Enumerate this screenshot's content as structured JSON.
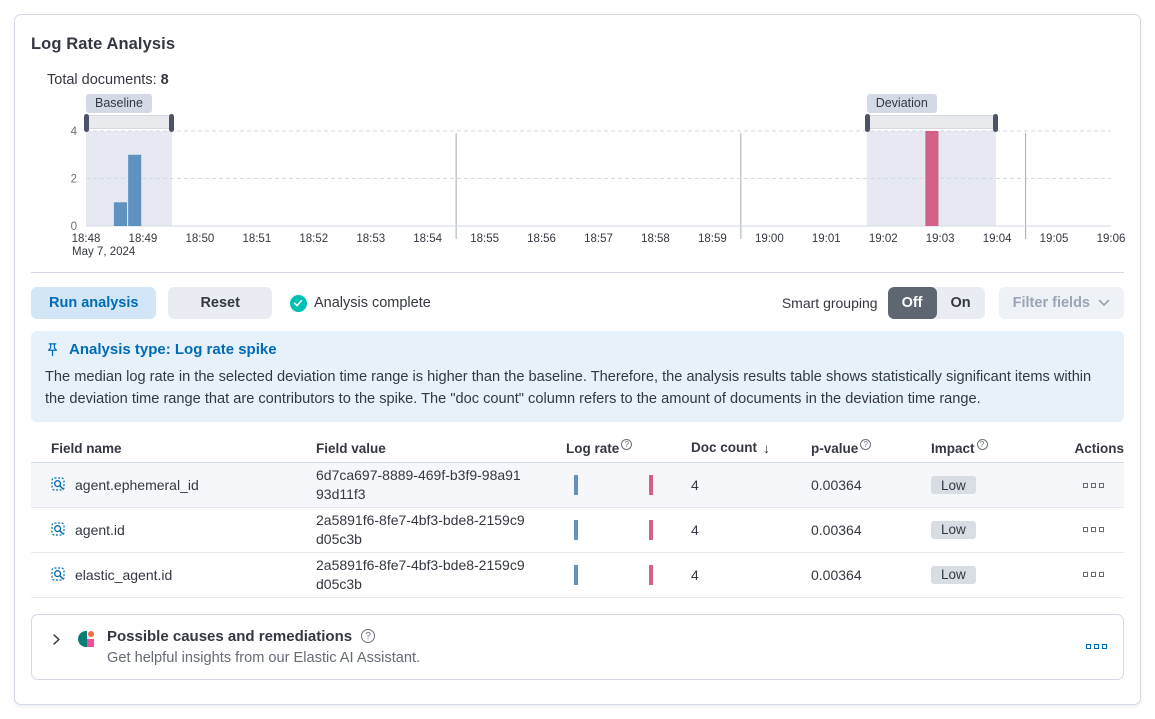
{
  "page": {
    "title": "Log Rate Analysis"
  },
  "summary": {
    "total_documents_label": "Total documents:",
    "total_documents_value": "8"
  },
  "chart_data": {
    "type": "bar",
    "title": "Document count histogram with baseline and deviation brushes",
    "x_axis": {
      "tick_labels": [
        "18:48",
        "18:49",
        "18:50",
        "18:51",
        "18:52",
        "18:53",
        "18:54",
        "18:55",
        "18:56",
        "18:57",
        "18:58",
        "18:59",
        "19:00",
        "19:01",
        "19:02",
        "19:03",
        "19:04",
        "19:05",
        "19:06"
      ],
      "date_label": "May 7, 2024",
      "minutes_span": 18,
      "major_gridlines_min": [
        6.5,
        11.5,
        16.5
      ]
    },
    "y_axis": {
      "ticks": [
        0,
        2,
        4
      ],
      "max": 4,
      "dashed_ticks": [
        2,
        4
      ]
    },
    "windows": {
      "baseline": {
        "label": "Baseline",
        "from_min": 0,
        "to_min": 1.51
      },
      "deviation": {
        "label": "Deviation",
        "from_min": 13.71,
        "to_min": 15.98
      }
    },
    "series": [
      {
        "name": "baseline-doc-count",
        "color": "#6092C0",
        "bars": [
          {
            "t": 0.49,
            "time": "18:48:30",
            "v": 1
          },
          {
            "t": 0.74,
            "time": "18:48:45",
            "v": 3
          }
        ]
      },
      {
        "name": "deviation-doc-count",
        "color": "#D36086",
        "bars": [
          {
            "t": 14.74,
            "time": "19:02:45",
            "v": 4
          }
        ]
      }
    ],
    "bar_width_min": 0.23,
    "shade_color": "#e6e9f2",
    "legend": "none"
  },
  "controls": {
    "run_label": "Run analysis",
    "reset_label": "Reset",
    "status_label": "Analysis complete",
    "smart_grouping_label": "Smart grouping",
    "toggle_off": "Off",
    "toggle_on": "On",
    "filter_fields_label": "Filter fields"
  },
  "callout": {
    "title": "Analysis type: Log rate spike",
    "body": "The median log rate in the selected deviation time range is higher than the baseline. Therefore, the analysis results table shows statistically significant items within the deviation time range that are contributors to the spike. The \"doc count\" column refers to the amount of documents in the deviation time range."
  },
  "table": {
    "columns": [
      {
        "label": "Field name"
      },
      {
        "label": "Field value"
      },
      {
        "label": "Log rate",
        "info": true
      },
      {
        "label": "Doc count",
        "sort": "desc"
      },
      {
        "label": "p-value",
        "info": true
      },
      {
        "label": "Impact",
        "info": true
      },
      {
        "label": "Actions"
      }
    ],
    "rows": [
      {
        "field_name": "agent.ephemeral_id",
        "field_value": "6d7ca697-8889-469f-b3f9-98a9193d11f3",
        "doc_count": "4",
        "p_value": "0.00364",
        "impact": "Low"
      },
      {
        "field_name": "agent.id",
        "field_value": "2a5891f6-8fe7-4bf3-bde8-2159c9d05c3b",
        "doc_count": "4",
        "p_value": "0.00364",
        "impact": "Low"
      },
      {
        "field_name": "elastic_agent.id",
        "field_value": "2a5891f6-8fe7-4bf3-bde8-2159c9d05c3b",
        "doc_count": "4",
        "p_value": "0.00364",
        "impact": "Low"
      }
    ]
  },
  "ai_panel": {
    "title": "Possible causes and remediations",
    "subtitle": "Get helpful insights from our Elastic AI Assistant."
  },
  "colors": {
    "baseline_bar": "#6092C0",
    "deviation_bar": "#D36086",
    "accent_blue": "#006bb4",
    "success_teal": "#00bfb3",
    "panel_border": "#d3dae6"
  },
  "icons": [
    "check-circle-icon",
    "pin-icon",
    "question-circle-icon",
    "sort-desc-icon",
    "field-search-icon",
    "boxes-horizontal-icon",
    "chevron-right-icon",
    "chevron-down-icon",
    "ai-assistant-logo"
  ]
}
